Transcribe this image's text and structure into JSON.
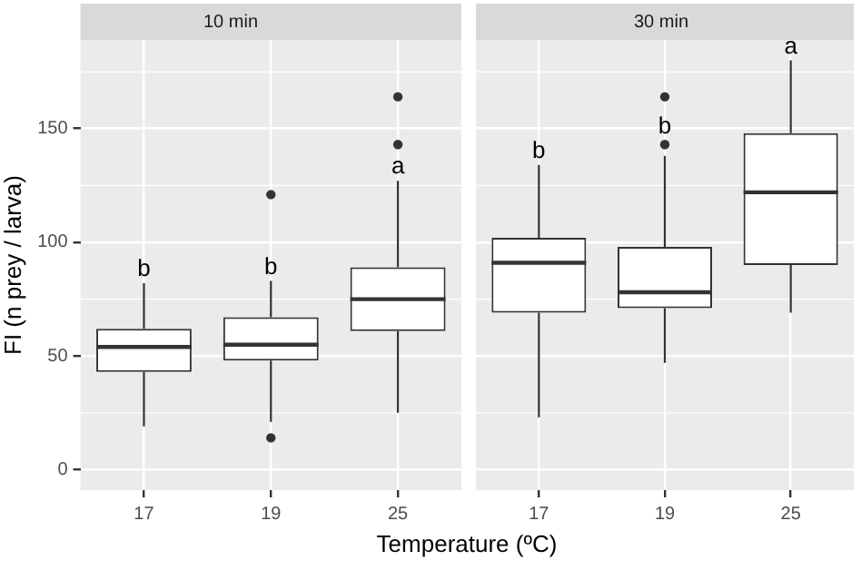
{
  "chart_data": [
    {
      "type": "box",
      "title": "10 min",
      "ylabel": "FI (n prey / larva)",
      "xlabel": "Temperature (ºC)",
      "categories": [
        "17",
        "19",
        "25"
      ],
      "boxes": [
        {
          "low": 19,
          "q1": 43,
          "median": 54,
          "q3": 62,
          "high": 82
        },
        {
          "low": 21,
          "q1": 48,
          "median": 55,
          "q3": 67,
          "high": 83,
          "outliers": [
            121,
            14
          ]
        },
        {
          "low": 25,
          "q1": 61,
          "median": 75,
          "q3": 89,
          "high": 127,
          "outliers": [
            164,
            143
          ]
        }
      ],
      "ylim": [
        -9,
        189
      ],
      "yticks": [
        0,
        50,
        100,
        150
      ],
      "grid": true,
      "legend": false,
      "annotations": [
        "b",
        "b",
        "a"
      ]
    },
    {
      "type": "box",
      "title": "30 min",
      "categories": [
        "17",
        "19",
        "25"
      ],
      "boxes": [
        {
          "low": 23,
          "q1": 69,
          "median": 91,
          "q3": 102,
          "high": 134
        },
        {
          "low": 47,
          "q1": 71,
          "median": 78,
          "q3": 98,
          "high": 138,
          "outliers": [
            164,
            143
          ]
        },
        {
          "low": 69,
          "q1": 90,
          "median": 122,
          "q3": 148,
          "high": 180
        }
      ],
      "ylim": [
        -9,
        189
      ],
      "yticks": [
        0,
        50,
        100,
        150
      ],
      "grid": true,
      "legend": false,
      "tick_labels": "x",
      "annotations": [
        "b",
        "b",
        "a"
      ]
    }
  ]
}
